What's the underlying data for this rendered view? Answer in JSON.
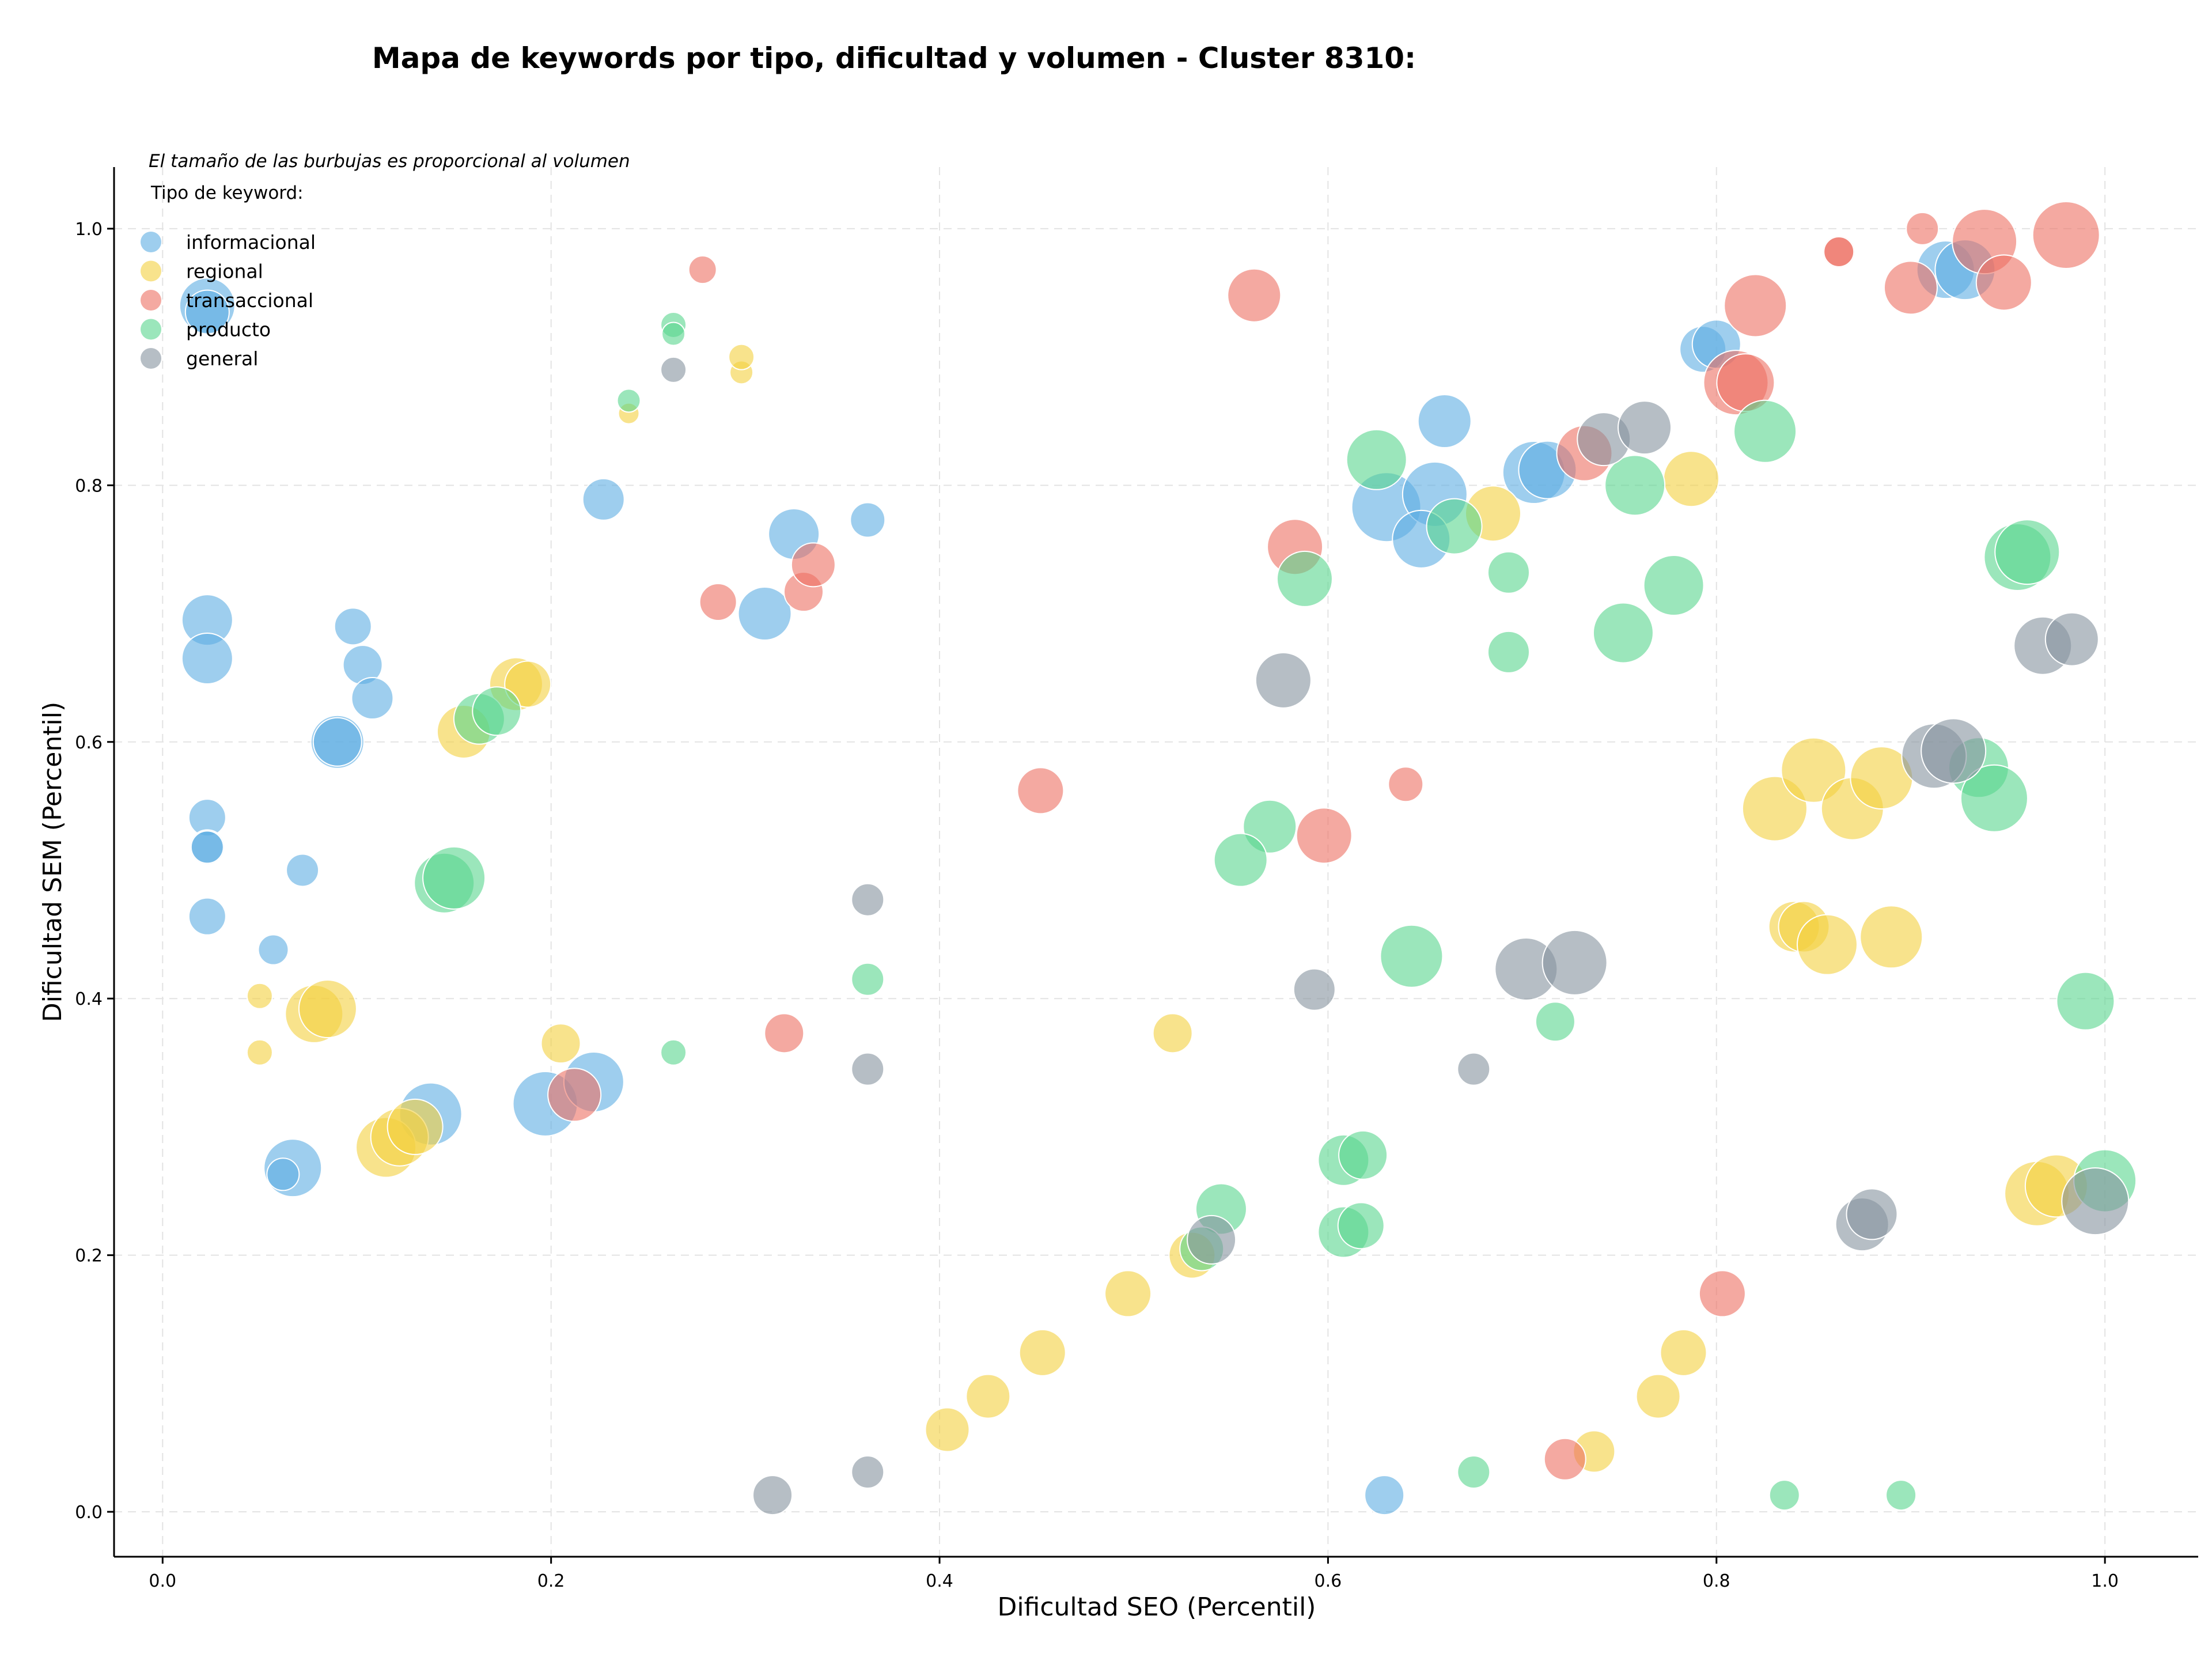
{
  "chart_data": {
    "type": "scatter",
    "title": "Mapa de keywords por tipo, dificultad y volumen - Cluster 8310:",
    "xlabel": "Dificultad SEO (Percentil)",
    "ylabel": "Dificultad SEM (Percentil)",
    "xlim": [
      -0.025,
      1.048
    ],
    "ylim": [
      -0.035,
      1.048
    ],
    "xticks": [
      "0.0",
      "0.2",
      "0.4",
      "0.6",
      "0.8",
      "1.0"
    ],
    "yticks": [
      "0.0",
      "0.2",
      "0.4",
      "0.6",
      "0.8",
      "1.0"
    ],
    "grid": true,
    "size_note": "El tamaño de las burbujas es proporcional al volumen",
    "legend": {
      "title": "Tipo de keyword:",
      "placement": "top-left"
    },
    "series": [
      {
        "name": "informacional",
        "color": "#5dade2",
        "points": [
          [
            0.023,
            0.94,
            48
          ],
          [
            0.023,
            0.935,
            38
          ],
          [
            0.023,
            0.695,
            44
          ],
          [
            0.023,
            0.665,
            44
          ],
          [
            0.098,
            0.69,
            32
          ],
          [
            0.103,
            0.66,
            34
          ],
          [
            0.108,
            0.634,
            36
          ],
          [
            0.09,
            0.6,
            46
          ],
          [
            0.09,
            0.6,
            42
          ],
          [
            0.023,
            0.541,
            32
          ],
          [
            0.023,
            0.518,
            30
          ],
          [
            0.023,
            0.518,
            28
          ],
          [
            0.072,
            0.5,
            28
          ],
          [
            0.023,
            0.464,
            32
          ],
          [
            0.057,
            0.438,
            26
          ],
          [
            0.067,
            0.268,
            50
          ],
          [
            0.062,
            0.263,
            28
          ],
          [
            0.138,
            0.31,
            54
          ],
          [
            0.197,
            0.318,
            56
          ],
          [
            0.222,
            0.335,
            52
          ],
          [
            0.227,
            0.789,
            36
          ],
          [
            0.325,
            0.762,
            44
          ],
          [
            0.31,
            0.7,
            46
          ],
          [
            0.363,
            0.773,
            30
          ],
          [
            0.66,
            0.85,
            46
          ],
          [
            0.63,
            0.783,
            60
          ],
          [
            0.655,
            0.793,
            56
          ],
          [
            0.648,
            0.758,
            50
          ],
          [
            0.706,
            0.81,
            54
          ],
          [
            0.713,
            0.812,
            50
          ],
          [
            0.793,
            0.906,
            40
          ],
          [
            0.8,
            0.91,
            42
          ],
          [
            0.918,
            0.968,
            50
          ],
          [
            0.928,
            0.968,
            52
          ],
          [
            0.629,
            0.013,
            34
          ]
        ]
      },
      {
        "name": "regional",
        "color": "#f4d03f",
        "points": [
          [
            0.05,
            0.402,
            22
          ],
          [
            0.05,
            0.358,
            22
          ],
          [
            0.078,
            0.388,
            50
          ],
          [
            0.085,
            0.392,
            50
          ],
          [
            0.115,
            0.284,
            52
          ],
          [
            0.122,
            0.292,
            50
          ],
          [
            0.13,
            0.3,
            48
          ],
          [
            0.205,
            0.365,
            34
          ],
          [
            0.155,
            0.608,
            46
          ],
          [
            0.182,
            0.645,
            46
          ],
          [
            0.188,
            0.645,
            40
          ],
          [
            0.24,
            0.856,
            18
          ],
          [
            0.298,
            0.888,
            20
          ],
          [
            0.298,
            0.9,
            22
          ],
          [
            0.52,
            0.373,
            34
          ],
          [
            0.53,
            0.2,
            40
          ],
          [
            0.497,
            0.17,
            40
          ],
          [
            0.453,
            0.124,
            40
          ],
          [
            0.425,
            0.09,
            38
          ],
          [
            0.404,
            0.064,
            38
          ],
          [
            0.685,
            0.778,
            48
          ],
          [
            0.787,
            0.805,
            48
          ],
          [
            0.737,
            0.047,
            36
          ],
          [
            0.77,
            0.09,
            38
          ],
          [
            0.783,
            0.124,
            40
          ],
          [
            0.83,
            0.548,
            56
          ],
          [
            0.85,
            0.578,
            56
          ],
          [
            0.87,
            0.548,
            54
          ],
          [
            0.885,
            0.572,
            54
          ],
          [
            0.84,
            0.456,
            44
          ],
          [
            0.845,
            0.456,
            44
          ],
          [
            0.857,
            0.442,
            52
          ],
          [
            0.89,
            0.448,
            54
          ],
          [
            0.965,
            0.248,
            56
          ],
          [
            0.975,
            0.254,
            54
          ]
        ]
      },
      {
        "name": "transaccional",
        "color": "#ec7063",
        "points": [
          [
            0.278,
            0.968,
            24
          ],
          [
            0.286,
            0.709,
            32
          ],
          [
            0.33,
            0.717,
            34
          ],
          [
            0.335,
            0.738,
            38
          ],
          [
            0.32,
            0.373,
            34
          ],
          [
            0.212,
            0.325,
            46
          ],
          [
            0.452,
            0.562,
            40
          ],
          [
            0.562,
            0.948,
            46
          ],
          [
            0.583,
            0.752,
            48
          ],
          [
            0.598,
            0.527,
            48
          ],
          [
            0.64,
            0.567,
            30
          ],
          [
            0.732,
            0.825,
            48
          ],
          [
            0.722,
            0.041,
            36
          ],
          [
            0.81,
            0.88,
            56
          ],
          [
            0.815,
            0.88,
            50
          ],
          [
            0.82,
            0.94,
            54
          ],
          [
            0.803,
            0.17,
            40
          ],
          [
            0.863,
            0.982,
            28
          ],
          [
            0.863,
            0.982,
            26
          ],
          [
            0.9,
            0.954,
            46
          ],
          [
            0.906,
            1.0,
            28
          ],
          [
            0.938,
            0.99,
            56
          ],
          [
            0.948,
            0.958,
            48
          ],
          [
            0.98,
            0.995,
            58
          ]
        ]
      },
      {
        "name": "producto",
        "color": "#58d68d",
        "points": [
          [
            0.263,
            0.925,
            22
          ],
          [
            0.263,
            0.918,
            20
          ],
          [
            0.24,
            0.866,
            20
          ],
          [
            0.145,
            0.49,
            52
          ],
          [
            0.15,
            0.494,
            54
          ],
          [
            0.163,
            0.618,
            44
          ],
          [
            0.172,
            0.624,
            42
          ],
          [
            0.263,
            0.358,
            22
          ],
          [
            0.363,
            0.415,
            28
          ],
          [
            0.57,
            0.534,
            46
          ],
          [
            0.555,
            0.508,
            46
          ],
          [
            0.545,
            0.236,
            44
          ],
          [
            0.535,
            0.205,
            38
          ],
          [
            0.588,
            0.727,
            48
          ],
          [
            0.608,
            0.274,
            44
          ],
          [
            0.618,
            0.278,
            42
          ],
          [
            0.608,
            0.218,
            44
          ],
          [
            0.617,
            0.223,
            40
          ],
          [
            0.625,
            0.82,
            52
          ],
          [
            0.643,
            0.433,
            54
          ],
          [
            0.665,
            0.768,
            48
          ],
          [
            0.693,
            0.732,
            36
          ],
          [
            0.693,
            0.67,
            36
          ],
          [
            0.717,
            0.382,
            34
          ],
          [
            0.675,
            0.031,
            28
          ],
          [
            0.752,
            0.685,
            52
          ],
          [
            0.758,
            0.8,
            52
          ],
          [
            0.778,
            0.722,
            52
          ],
          [
            0.825,
            0.842,
            54
          ],
          [
            0.835,
            0.013,
            26
          ],
          [
            0.895,
            0.013,
            26
          ],
          [
            0.935,
            0.58,
            52
          ],
          [
            0.943,
            0.556,
            58
          ],
          [
            0.955,
            0.744,
            58
          ],
          [
            0.96,
            0.748,
            56
          ],
          [
            0.99,
            0.398,
            50
          ],
          [
            1.0,
            0.258,
            54
          ]
        ]
      },
      {
        "name": "general",
        "color": "#85929e",
        "points": [
          [
            0.263,
            0.89,
            22
          ],
          [
            0.363,
            0.477,
            28
          ],
          [
            0.363,
            0.345,
            28
          ],
          [
            0.314,
            0.013,
            34
          ],
          [
            0.363,
            0.031,
            28
          ],
          [
            0.577,
            0.648,
            48
          ],
          [
            0.593,
            0.407,
            36
          ],
          [
            0.54,
            0.212,
            42
          ],
          [
            0.675,
            0.345,
            28
          ],
          [
            0.702,
            0.423,
            54
          ],
          [
            0.727,
            0.428,
            56
          ],
          [
            0.742,
            0.836,
            46
          ],
          [
            0.763,
            0.845,
            46
          ],
          [
            0.875,
            0.224,
            46
          ],
          [
            0.88,
            0.232,
            44
          ],
          [
            0.912,
            0.589,
            56
          ],
          [
            0.922,
            0.593,
            56
          ],
          [
            0.968,
            0.675,
            50
          ],
          [
            0.983,
            0.68,
            46
          ],
          [
            0.995,
            0.242,
            58
          ]
        ]
      }
    ]
  }
}
